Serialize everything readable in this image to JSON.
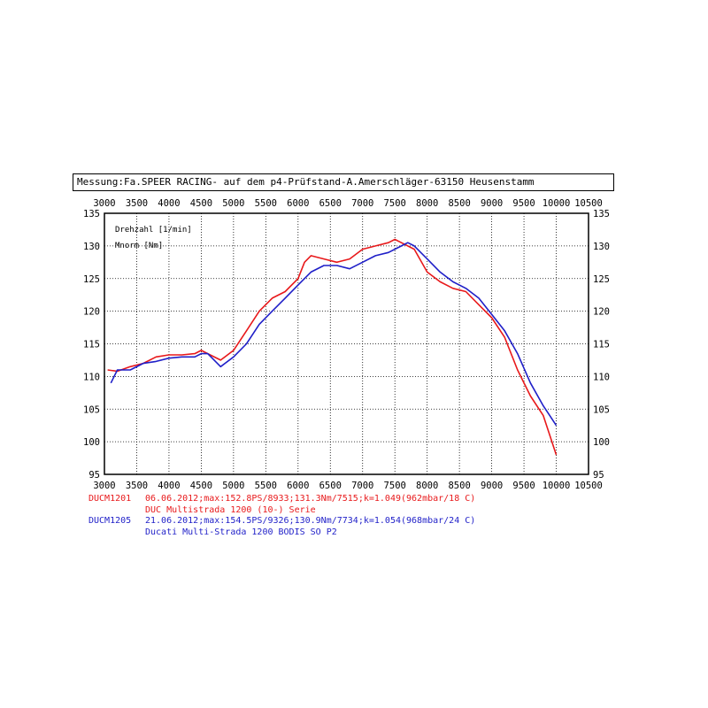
{
  "header": {
    "title": "Messung:Fa.SPEER RACING- auf dem p4-Prüfstand-A.Amerschläger-63150 Heusenstamm"
  },
  "colors": {
    "run1": "#e8191b",
    "run2": "#1f1fc8",
    "grid": "#000000"
  },
  "chart_data": {
    "type": "line",
    "x_ticks": [
      "3000",
      "3500",
      "4000",
      "4500",
      "5000",
      "5500",
      "6000",
      "6500",
      "7000",
      "7500",
      "8000",
      "8500",
      "9000",
      "9500",
      "10000",
      "10500"
    ],
    "y_ticks": [
      "135",
      "130",
      "125",
      "120",
      "115",
      "110",
      "105",
      "100",
      "95"
    ],
    "xlim": [
      3000,
      10500
    ],
    "ylim": [
      95,
      135
    ],
    "xlabel": "Drehzahl [1/min]",
    "ylabel": "Mnorm [Nm]",
    "grid": true,
    "series": [
      {
        "name": "DUCM1201",
        "color": "#e8191b",
        "x": [
          3050,
          3200,
          3400,
          3600,
          3800,
          4000,
          4200,
          4400,
          4500,
          4600,
          4800,
          5000,
          5200,
          5400,
          5600,
          5800,
          6000,
          6100,
          6200,
          6400,
          6600,
          6800,
          7000,
          7200,
          7400,
          7500,
          7600,
          7800,
          8000,
          8200,
          8400,
          8600,
          8800,
          9000,
          9200,
          9400,
          9600,
          9800,
          9900,
          10000
        ],
        "y": [
          111,
          110.8,
          111.5,
          112,
          113,
          113.3,
          113.3,
          113.5,
          114,
          113.5,
          112.5,
          114,
          117,
          120,
          122,
          123,
          125,
          127.5,
          128.5,
          128,
          127.5,
          128,
          129.5,
          130,
          130.5,
          131,
          130.5,
          129.5,
          126,
          124.5,
          123.5,
          123,
          121,
          119,
          116,
          111,
          107,
          104,
          101,
          98
        ]
      },
      {
        "name": "DUCM1205",
        "color": "#1f1fc8",
        "x": [
          3100,
          3200,
          3400,
          3600,
          3800,
          4000,
          4200,
          4400,
          4500,
          4600,
          4800,
          5000,
          5200,
          5400,
          5600,
          5800,
          6000,
          6200,
          6400,
          6600,
          6800,
          7000,
          7200,
          7400,
          7600,
          7700,
          7800,
          8000,
          8200,
          8400,
          8600,
          8800,
          9000,
          9200,
          9400,
          9600,
          9800,
          9900,
          10000
        ],
        "y": [
          109,
          111,
          111,
          112,
          112.3,
          112.8,
          113,
          113,
          113.5,
          113.5,
          111.5,
          113,
          115,
          118,
          120,
          122,
          124,
          126,
          127,
          127,
          126.5,
          127.5,
          128.5,
          129,
          130,
          130.5,
          130,
          128,
          126,
          124.5,
          123.5,
          122,
          119.5,
          117,
          113.5,
          109,
          105.5,
          104,
          102.5
        ]
      }
    ]
  },
  "legend": [
    {
      "id": "DUCM1201",
      "line1": "06.06.2012;max:152.8PS/8933;131.3Nm/7515;k=1.049(962mbar/18 C)",
      "line2": "DUC Multistrada 1200 (10-) Serie",
      "color": "#e8191b"
    },
    {
      "id": "DUCM1205",
      "line1": "21.06.2012;max:154.5PS/9326;130.9Nm/7734;k=1.054(968mbar/24 C)",
      "line2": "Ducati Multi-Strada 1200 BODIS SO P2",
      "color": "#1f1fc8"
    }
  ]
}
